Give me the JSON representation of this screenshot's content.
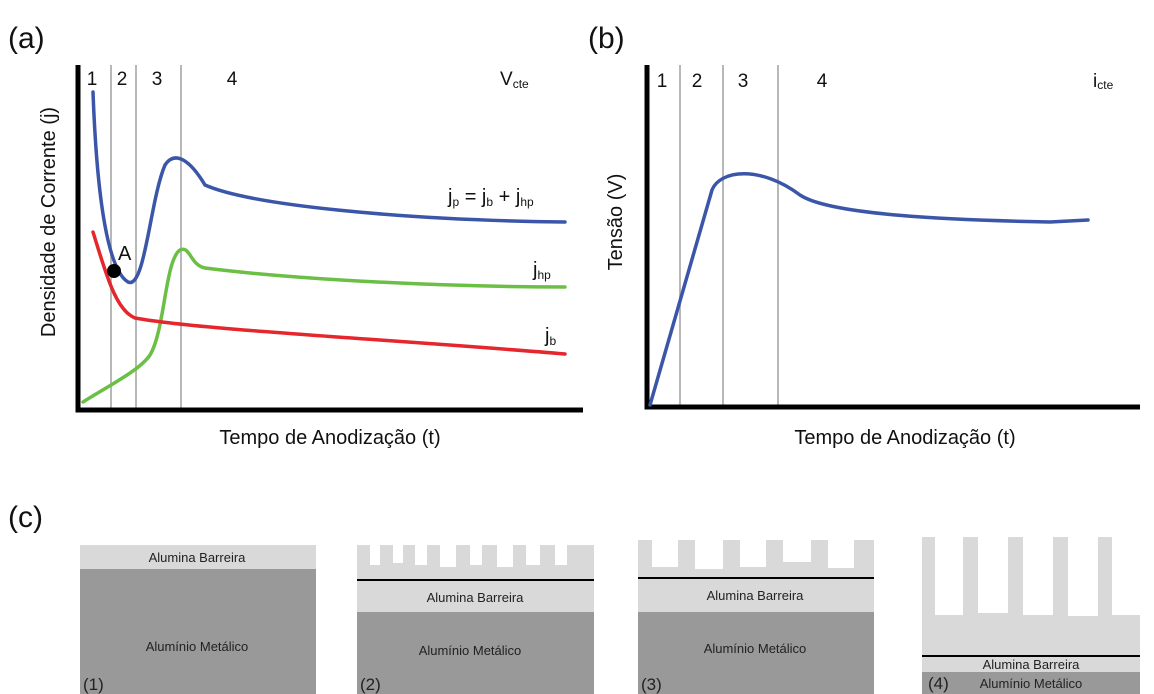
{
  "panel_a": {
    "label": "(a)",
    "regions": [
      "1",
      "2",
      "3",
      "4"
    ],
    "mode": {
      "main": "V",
      "sub": "cte"
    },
    "y_axis_label": "Densidade de Corrente (j)",
    "x_axis_label": "Tempo de Anodização (t)",
    "point_label": "A",
    "curves": {
      "jp": [
        "j",
        "p",
        " = j",
        "b",
        " + j",
        "hp"
      ],
      "jhp": {
        "main": "j",
        "sub": "hp"
      },
      "jb": {
        "main": "j",
        "sub": "b"
      }
    }
  },
  "panel_b": {
    "label": "(b)",
    "regions": [
      "1",
      "2",
      "3",
      "4"
    ],
    "mode": {
      "main": "i",
      "sub": "cte"
    },
    "y_axis_label": "Tensão (V)",
    "x_axis_label": "Tempo de Anodização (t)"
  },
  "panel_c": {
    "label": "(c)",
    "stages": [
      {
        "number": "(1)",
        "barrier": "Alumina Barreira",
        "metal": "Alumínio Metálico"
      },
      {
        "number": "(2)",
        "barrier": "Alumina Barreira",
        "metal": "Alumínio Metálico"
      },
      {
        "number": "(3)",
        "barrier": "Alumina Barreira",
        "metal": "Alumínio Metálico"
      },
      {
        "number": "(4)",
        "barrier": "Alumina Barreira",
        "metal": "Alumínio Metálico"
      }
    ]
  }
}
